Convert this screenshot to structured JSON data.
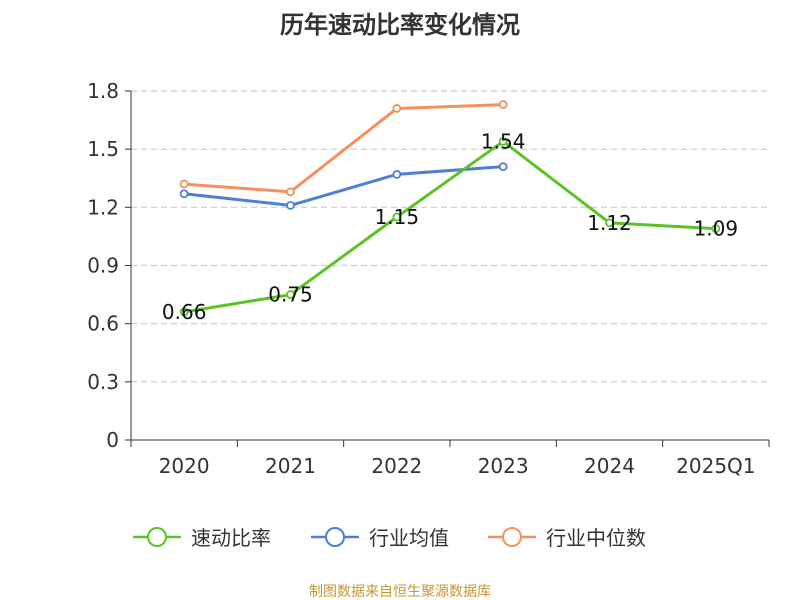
{
  "chart_data": {
    "type": "line",
    "title": "历年速动比率变化情况",
    "categories": [
      "2020",
      "2021",
      "2022",
      "2023",
      "2024",
      "2025Q1"
    ],
    "yticks": [
      "0",
      "0.3",
      "0.6",
      "0.9",
      "1.2",
      "1.5",
      "1.8"
    ],
    "ylim": [
      0,
      1.8
    ],
    "grid": true,
    "series": [
      {
        "name": "速动比率",
        "color": "#5cc326",
        "values": [
          0.66,
          0.75,
          1.15,
          1.54,
          1.12,
          1.09
        ],
        "labels": [
          "0.66",
          "0.75",
          "1.15",
          "1.54",
          "1.12",
          "1.09"
        ]
      },
      {
        "name": "行业均值",
        "color": "#4e7fd8",
        "values": [
          1.27,
          1.21,
          1.37,
          1.41,
          null,
          null
        ]
      },
      {
        "name": "行业中位数",
        "color": "#f5905c",
        "values": [
          1.32,
          1.28,
          1.71,
          1.73,
          null,
          null
        ]
      }
    ],
    "legend_position": "bottom",
    "source": "制图数据来自恒生聚源数据库"
  }
}
